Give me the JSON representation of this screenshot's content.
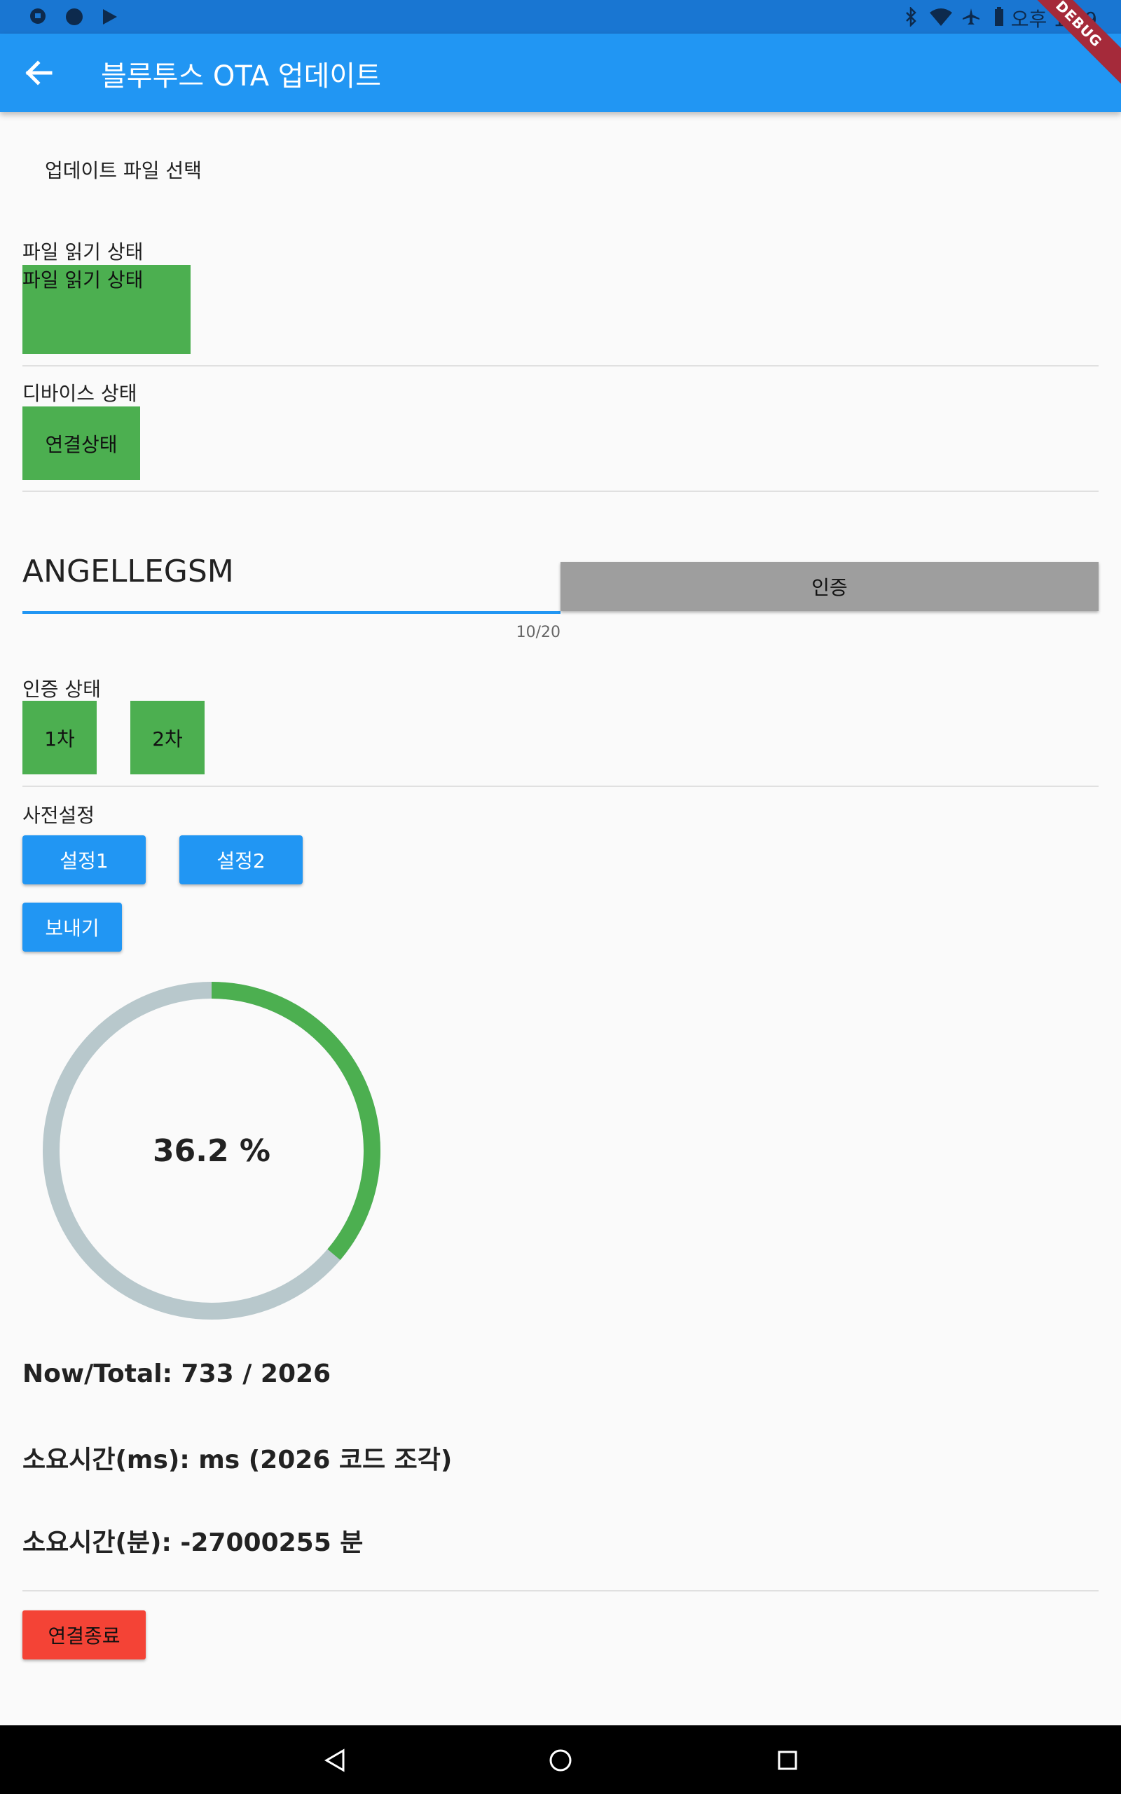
{
  "status_bar": {
    "time": "오후 1:19",
    "left_icons": [
      "chat-icon",
      "circle-icon",
      "play-store-icon"
    ],
    "right_icons": [
      "bluetooth-icon",
      "wifi-icon",
      "airplane-icon",
      "battery-icon"
    ]
  },
  "app_bar": {
    "title": "블루투스 OTA 업데이트",
    "back_icon": "arrow-back-icon",
    "color": "#2196f3"
  },
  "debug_banner": "DEBUG",
  "file_select": {
    "label": "업데이트 파일 선택"
  },
  "file_read": {
    "section_label": "파일 읽기 상태",
    "box_text": "파일 읽기 상태"
  },
  "device": {
    "section_label": "디바이스 상태",
    "box_text": "연결상태"
  },
  "auth_input": {
    "value": "ANGELLEGSM",
    "counter": "10/20",
    "button_label": "인증"
  },
  "auth_status": {
    "section_label": "인증 상태",
    "first": "1차",
    "second": "2차"
  },
  "presets": {
    "section_label": "사전설정",
    "buttons": [
      "설정1",
      "설정2"
    ],
    "send_label": "보내기"
  },
  "progress": {
    "percent_text": "36.2 %",
    "fraction": 0.362,
    "track_color": "#b8c8cc",
    "fill_color": "#4caf50"
  },
  "stats": {
    "now_total": "Now/Total: 733 / 2026",
    "elapsed_ms": "소요시간(ms):  ms (2026 코드 조각)",
    "elapsed_min": "소요시간(분): -27000255 분"
  },
  "disconnect": {
    "label": "연결종료",
    "color": "#f44336"
  },
  "nav_bar": {
    "icons": [
      "back-triangle-icon",
      "home-circle-icon",
      "recents-square-icon"
    ]
  }
}
